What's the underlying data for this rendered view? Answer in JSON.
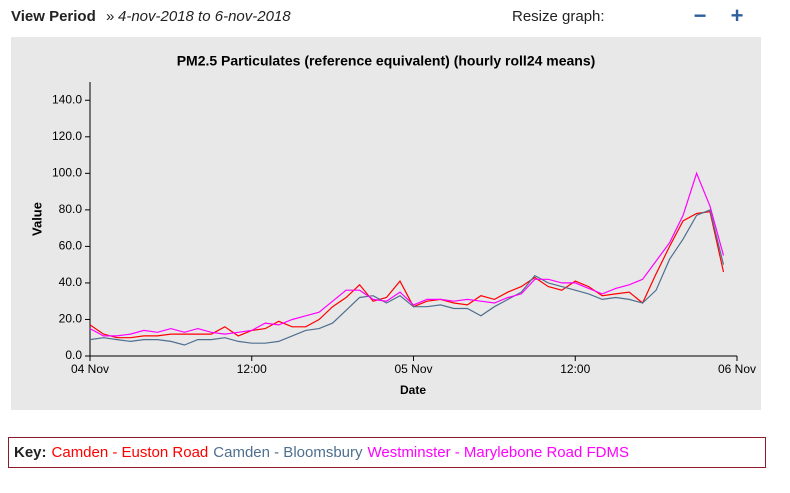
{
  "header": {
    "view_period_label": "View Period",
    "separator": "»",
    "period": "4-nov-2018 to 6-nov-2018",
    "resize_label": "Resize graph:",
    "minus": "−",
    "plus": "+"
  },
  "key": {
    "label": "Key:"
  },
  "chart_data": {
    "type": "line",
    "title": "PM2.5 Particulates (reference equivalent) (hourly roll24 means)",
    "x_label": "Date",
    "y_label": "Value",
    "x": [
      0,
      1,
      2,
      3,
      4,
      5,
      6,
      7,
      8,
      9,
      10,
      11,
      12,
      13,
      14,
      15,
      16,
      17,
      18,
      19,
      20,
      21,
      22,
      23,
      24,
      25,
      26,
      27,
      28,
      29,
      30,
      31,
      32,
      33,
      34,
      35,
      36,
      37,
      38,
      39,
      40,
      41,
      42,
      43,
      44,
      45,
      46,
      47
    ],
    "xlim": [
      0,
      48
    ],
    "xticks": [
      {
        "value": 0,
        "label": "04 Nov"
      },
      {
        "value": 12,
        "label": "12:00"
      },
      {
        "value": 24,
        "label": "05 Nov"
      },
      {
        "value": 36,
        "label": "12:00"
      },
      {
        "value": 48,
        "label": "06 Nov"
      }
    ],
    "ylim": [
      0,
      150
    ],
    "yticks": [
      {
        "value": 0,
        "label": "0.0"
      },
      {
        "value": 20,
        "label": "20.0"
      },
      {
        "value": 40,
        "label": "40.0"
      },
      {
        "value": 60,
        "label": "60.0"
      },
      {
        "value": 80,
        "label": "80.0"
      },
      {
        "value": 100,
        "label": "100.0"
      },
      {
        "value": 120,
        "label": "120.0"
      },
      {
        "value": 140,
        "label": "140.0"
      }
    ],
    "grid": false,
    "series": [
      {
        "name": "Camden - Euston Road",
        "color": "#ff0000",
        "values": [
          17,
          12,
          10,
          10,
          11,
          11,
          12,
          12,
          12,
          12,
          16,
          11,
          14,
          15,
          19,
          16,
          16,
          20,
          27,
          32,
          39,
          30,
          32,
          41,
          27,
          30,
          31,
          29,
          28,
          33,
          31,
          35,
          38,
          43,
          38,
          36,
          41,
          38,
          33,
          34,
          35,
          29,
          45,
          60,
          74,
          78,
          79,
          46
        ]
      },
      {
        "name": "Camden - Bloomsbury",
        "color": "#4f6f8f",
        "values": [
          9,
          10,
          9,
          8,
          9,
          9,
          8,
          6,
          9,
          9,
          10,
          8,
          7,
          7,
          8,
          11,
          14,
          15,
          18,
          25,
          32,
          33,
          29,
          33,
          27,
          27,
          28,
          26,
          26,
          22,
          27,
          31,
          35,
          44,
          40,
          38,
          36,
          34,
          31,
          32,
          31,
          29,
          36,
          53,
          64,
          77,
          80,
          50
        ]
      },
      {
        "name": "Westminster - Marylebone Road FDMS",
        "color": "#ff00ff",
        "values": [
          15,
          11,
          11,
          12,
          14,
          13,
          15,
          13,
          15,
          13,
          12,
          13,
          14,
          18,
          17,
          20,
          22,
          24,
          30,
          36,
          36,
          31,
          30,
          35,
          28,
          31,
          31,
          30,
          31,
          30,
          29,
          32,
          34,
          42,
          42,
          40,
          40,
          37,
          34,
          37,
          39,
          42,
          52,
          62,
          77,
          100,
          82,
          55
        ]
      }
    ]
  }
}
